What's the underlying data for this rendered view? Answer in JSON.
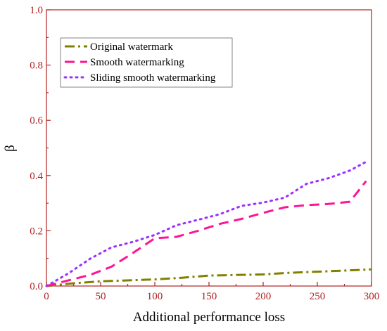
{
  "chart_data": {
    "type": "line",
    "title": "",
    "xlabel": "Additional performance loss",
    "ylabel": "β",
    "xlim": [
      0,
      300
    ],
    "ylim": [
      0,
      1.0
    ],
    "xticks": [
      "0",
      "50",
      "100",
      "150",
      "200",
      "250",
      "300"
    ],
    "yticks": [
      "0.0",
      "0.2",
      "0.4",
      "0.6",
      "0.8",
      "1.0"
    ],
    "grid": false,
    "legend_position": "top-left",
    "colors": {
      "axis": "#b22222",
      "text": "#000000"
    },
    "series": [
      {
        "name": "Original watermark",
        "color": "#808000",
        "dash": "dash-dot",
        "x": [
          0,
          25,
          50,
          100,
          125,
          150,
          175,
          200,
          225,
          250,
          275,
          300
        ],
        "y": [
          0.0,
          0.01,
          0.017,
          0.024,
          0.03,
          0.038,
          0.04,
          0.042,
          0.048,
          0.052,
          0.056,
          0.06
        ]
      },
      {
        "name": "Smooth watermarking",
        "color": "#ff1493",
        "dash": "dash",
        "x": [
          0,
          20,
          40,
          60,
          80,
          100,
          120,
          140,
          160,
          180,
          200,
          220,
          240,
          260,
          280,
          295
        ],
        "y": [
          0.0,
          0.02,
          0.04,
          0.07,
          0.12,
          0.173,
          0.178,
          0.2,
          0.225,
          0.243,
          0.265,
          0.285,
          0.293,
          0.297,
          0.305,
          0.38
        ]
      },
      {
        "name": "Sliding smooth watermarking",
        "color": "#9b30ff",
        "dash": "dot",
        "x": [
          0,
          20,
          40,
          60,
          80,
          100,
          120,
          140,
          160,
          180,
          200,
          220,
          240,
          260,
          280,
          295
        ],
        "y": [
          0.0,
          0.045,
          0.098,
          0.14,
          0.16,
          0.185,
          0.22,
          0.24,
          0.26,
          0.29,
          0.302,
          0.32,
          0.37,
          0.39,
          0.418,
          0.45
        ]
      }
    ]
  }
}
